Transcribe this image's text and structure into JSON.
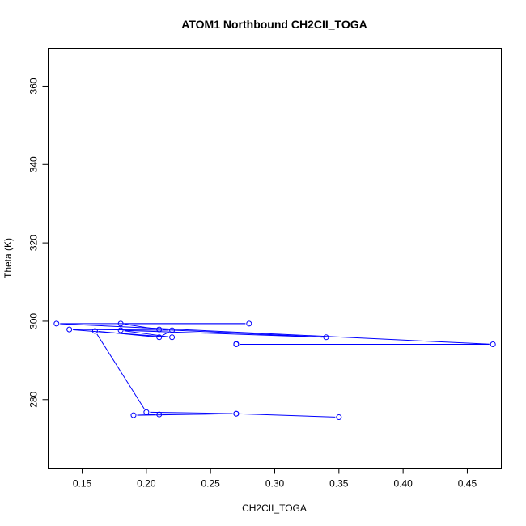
{
  "chart_data": {
    "type": "line",
    "title": "ATOM1 Northbound CH2CII_TOGA",
    "xlabel": "CH2CII_TOGA",
    "ylabel": "Theta (K)",
    "xlim": [
      0.1235,
      0.4765
    ],
    "ylim": [
      262.5,
      369.7
    ],
    "xticks": [
      0.15,
      0.2,
      0.25,
      0.3,
      0.35,
      0.4,
      0.45
    ],
    "xtick_labels": [
      "0.15",
      "0.20",
      "0.25",
      "0.30",
      "0.35",
      "0.40",
      "0.45"
    ],
    "yticks": [
      280,
      300,
      320,
      340,
      360
    ],
    "ytick_labels": [
      "280",
      "300",
      "320",
      "340",
      "360"
    ],
    "grid": false,
    "series": [
      {
        "color": "#0000ff",
        "marker": "open-circle",
        "x": [
          0.35,
          0.27,
          0.21,
          0.19,
          0.27,
          0.2,
          0.16,
          0.21,
          0.22,
          0.14,
          0.22,
          0.18,
          0.34,
          0.21,
          0.18,
          0.28,
          0.13,
          0.47,
          0.27,
          0.27
        ],
        "y": [
          275.5,
          276.4,
          276.2,
          276.0,
          276.4,
          276.8,
          297.5,
          295.9,
          297.7,
          297.9,
          295.9,
          297.7,
          295.9,
          297.9,
          299.4,
          299.4,
          299.4,
          294.1,
          294.1,
          294.2
        ]
      }
    ]
  }
}
